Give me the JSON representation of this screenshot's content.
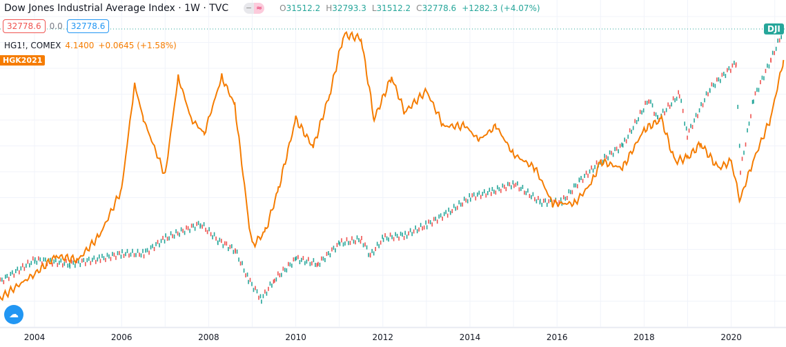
{
  "header": {
    "title": "Dow Jones Industrial Average Index · 1W · TVC",
    "toggle_left": "−",
    "toggle_right": "≈",
    "ohlc": {
      "o_label": "O",
      "o": "31512.2",
      "h_label": "H",
      "h": "32793.3",
      "l_label": "L",
      "l": "31512.2",
      "c_label": "C",
      "c": "32778.6",
      "change": "+1282.3 (+4.07%)"
    }
  },
  "prices": {
    "sell": "32778.6",
    "spread": "0.0",
    "buy": "32778.6"
  },
  "compare": {
    "symbol": "HG1!, COMEX",
    "last": "4.1400",
    "change": "+0.0645 (+1.58%)",
    "badge": "HGK2021"
  },
  "dji_badge": "DJI",
  "colors": {
    "dji": "#26a69a",
    "dji_down": "#ef5350",
    "copper": "#f57c00",
    "grid": "#f0f3fa"
  },
  "chart_data": {
    "type": "line",
    "x_ticks": [
      "2004",
      "2006",
      "2008",
      "2010",
      "2012",
      "2014",
      "2016",
      "2018",
      "2020"
    ],
    "grid": true,
    "series": [
      {
        "name": "DJI",
        "x": [
          2003.2,
          2004,
          2004.8,
          2005.5,
          2006,
          2006.5,
          2007,
          2007.8,
          2008.2,
          2008.6,
          2008.9,
          2009.2,
          2009.5,
          2010,
          2010.5,
          2011,
          2011.5,
          2011.7,
          2012,
          2012.5,
          2013,
          2013.5,
          2014,
          2014.5,
          2015,
          2015.6,
          2016.1,
          2016.5,
          2017,
          2017.5,
          2018.1,
          2018.3,
          2018.8,
          2018.98,
          2019.5,
          2020.1,
          2020.2,
          2020.5,
          2020.9,
          2021.2
        ],
        "values": [
          8300,
          10400,
          10000,
          10500,
          11000,
          11000,
          12500,
          13900,
          12300,
          11300,
          8500,
          6600,
          8500,
          10500,
          10000,
          12000,
          12400,
          10800,
          12500,
          12800,
          13800,
          15000,
          16500,
          17000,
          17800,
          16000,
          16000,
          18000,
          20000,
          21500,
          26000,
          24000,
          26500,
          22500,
          27000,
          29500,
          19000,
          26000,
          29800,
          32778.6
        ]
      },
      {
        "name": "HG1!, COMEX",
        "x": [
          2003.2,
          2004,
          2004.5,
          2005,
          2005.5,
          2006,
          2006.3,
          2006.5,
          2007,
          2007.3,
          2007.6,
          2007.9,
          2008.3,
          2008.6,
          2008.9,
          2009,
          2009.3,
          2009.6,
          2010,
          2010.4,
          2010.8,
          2011.1,
          2011.5,
          2011.8,
          2012.2,
          2012.5,
          2013,
          2013.4,
          2013.9,
          2014.2,
          2014.6,
          2015,
          2015.5,
          2015.9,
          2016.4,
          2016.8,
          2017,
          2017.5,
          2018,
          2018.4,
          2018.7,
          2019,
          2019.3,
          2019.7,
          2020,
          2020.2,
          2020.5,
          2020.9,
          2021.2
        ],
        "values": [
          0.75,
          1.1,
          1.35,
          1.3,
          1.65,
          2.3,
          3.8,
          3.3,
          2.5,
          3.9,
          3.3,
          3.1,
          3.9,
          3.5,
          1.95,
          1.5,
          1.7,
          2.3,
          3.3,
          2.9,
          3.7,
          4.5,
          4.45,
          3.3,
          3.9,
          3.4,
          3.7,
          3.2,
          3.2,
          3.0,
          3.2,
          2.8,
          2.6,
          2.1,
          2.1,
          2.4,
          2.7,
          2.6,
          3.15,
          3.3,
          2.7,
          2.75,
          2.95,
          2.6,
          2.7,
          2.15,
          2.7,
          3.3,
          4.14
        ]
      }
    ]
  }
}
